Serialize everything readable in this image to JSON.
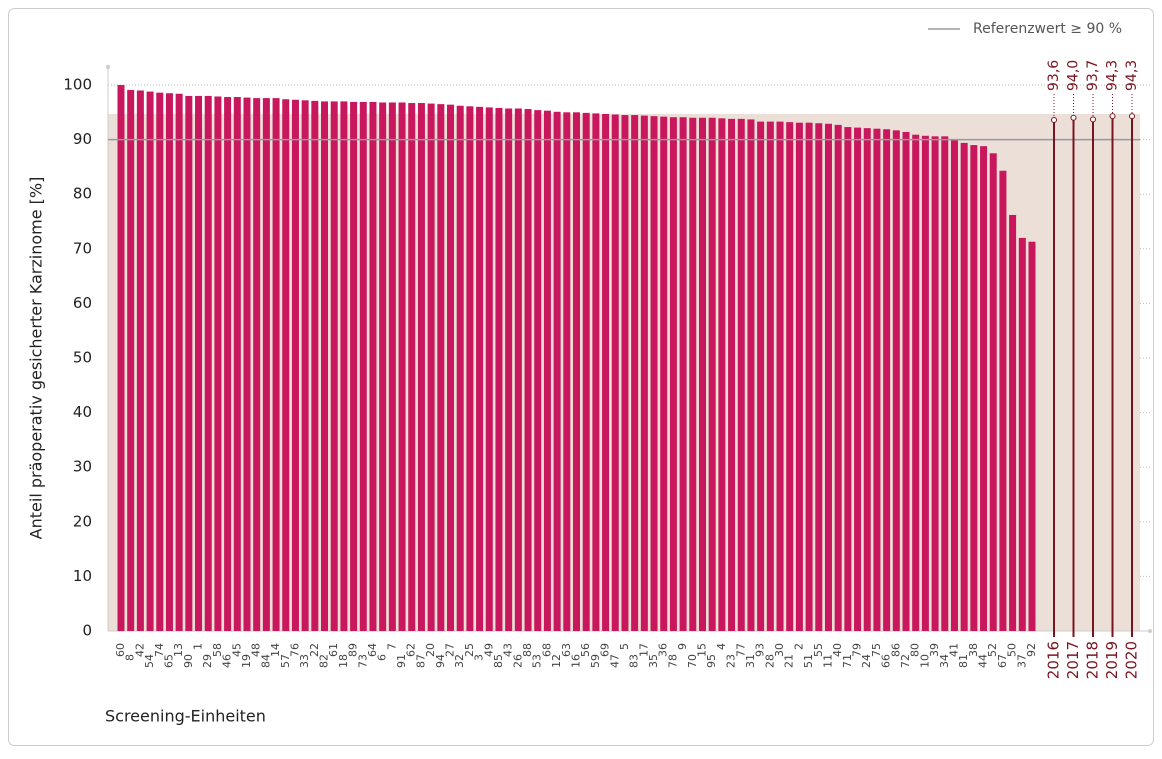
{
  "chart_data": {
    "type": "bar",
    "y_label": "Anteil präoperativ gesicherter Karzinome [%]",
    "x_label": "Screening-Einheiten",
    "categories": [
      "60",
      "8",
      "42",
      "54",
      "74",
      "65",
      "13",
      "90",
      "1",
      "29",
      "58",
      "46",
      "45",
      "19",
      "48",
      "84",
      "14",
      "57",
      "76",
      "33",
      "22",
      "82",
      "61",
      "18",
      "89",
      "73",
      "64",
      "6",
      "7",
      "91",
      "62",
      "87",
      "20",
      "94",
      "27",
      "32",
      "25",
      "3",
      "49",
      "85",
      "43",
      "26",
      "88",
      "53",
      "68",
      "12",
      "63",
      "16",
      "56",
      "59",
      "69",
      "47",
      "5",
      "83",
      "17",
      "35",
      "36",
      "78",
      "9",
      "70",
      "15",
      "95",
      "4",
      "23",
      "77",
      "31",
      "93",
      "28",
      "30",
      "21",
      "2",
      "51",
      "55",
      "11",
      "40",
      "71",
      "79",
      "24",
      "75",
      "66",
      "86",
      "72",
      "80",
      "10",
      "39",
      "34",
      "41",
      "81",
      "38",
      "44",
      "52",
      "67",
      "50",
      "37",
      "92"
    ],
    "values": [
      100,
      99.1,
      99.0,
      98.8,
      98.6,
      98.5,
      98.4,
      98.0,
      98.0,
      98.0,
      97.9,
      97.8,
      97.8,
      97.7,
      97.6,
      97.6,
      97.6,
      97.4,
      97.3,
      97.2,
      97.1,
      97.0,
      97.0,
      97.0,
      96.9,
      96.9,
      96.9,
      96.8,
      96.8,
      96.8,
      96.7,
      96.7,
      96.6,
      96.5,
      96.4,
      96.2,
      96.1,
      96.0,
      95.9,
      95.8,
      95.7,
      95.7,
      95.6,
      95.4,
      95.3,
      95.1,
      95.0,
      95.0,
      94.9,
      94.8,
      94.7,
      94.6,
      94.5,
      94.5,
      94.4,
      94.3,
      94.2,
      94.1,
      94.1,
      94.0,
      94.0,
      94.0,
      93.9,
      93.8,
      93.8,
      93.7,
      93.3,
      93.3,
      93.3,
      93.2,
      93.1,
      93.1,
      93.0,
      92.9,
      92.7,
      92.3,
      92.2,
      92.1,
      92.0,
      91.9,
      91.7,
      91.4,
      90.9,
      90.7,
      90.6,
      90.6,
      89.9,
      89.4,
      89.0,
      88.8,
      87.5,
      84.3,
      76.2,
      72.0,
      71.3
    ],
    "color": "#c8175d",
    "comparison": {
      "categories": [
        "2016",
        "2017",
        "2018",
        "2019",
        "2020"
      ],
      "values": [
        93.6,
        94.0,
        93.7,
        94.3,
        94.3
      ],
      "value_labels": [
        "93,6",
        "94,0",
        "93,7",
        "94,3",
        "94,3"
      ],
      "color": "#7a1420"
    },
    "reference": {
      "label": "Referenzwert ≥ 90 %",
      "value": 90,
      "color": "#999999"
    },
    "shade": {
      "range": [
        0,
        94.7
      ],
      "color": "#ecdfd8"
    },
    "ylim": [
      0,
      103.3
    ],
    "yticks": [
      0,
      10,
      20,
      30,
      40,
      50,
      60,
      70,
      80,
      90,
      100
    ],
    "grid": true
  }
}
